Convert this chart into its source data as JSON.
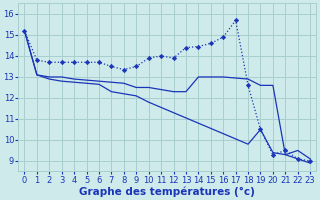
{
  "bg_color": "#ceeaea",
  "grid_color": "#a8cece",
  "line_color": "#1a35b8",
  "xlabel": "Graphe des températures (°c)",
  "xlabel_fontsize": 7.5,
  "tick_fontsize": 6.0,
  "ylim": [
    8.5,
    16.5
  ],
  "xlim": [
    -0.5,
    23.5
  ],
  "yticks": [
    9,
    10,
    11,
    12,
    13,
    14,
    15,
    16
  ],
  "xticks": [
    0,
    1,
    2,
    3,
    4,
    5,
    6,
    7,
    8,
    9,
    10,
    11,
    12,
    13,
    14,
    15,
    16,
    17,
    18,
    19,
    20,
    21,
    22,
    23
  ],
  "series1_x": [
    0,
    1,
    2,
    3,
    4,
    5,
    6,
    7,
    8,
    9,
    10,
    11,
    12,
    13,
    14,
    15,
    16,
    17,
    18,
    19,
    20,
    21,
    22,
    23
  ],
  "series1_y": [
    15.2,
    13.8,
    13.7,
    13.7,
    13.7,
    13.7,
    13.7,
    13.5,
    13.35,
    13.5,
    13.9,
    14.0,
    13.9,
    14.4,
    14.45,
    14.6,
    14.9,
    15.7,
    12.6,
    10.5,
    9.3,
    9.5,
    9.1,
    9.0
  ],
  "series2_x": [
    0,
    1,
    2,
    3,
    4,
    5,
    6,
    7,
    8,
    9,
    10,
    11,
    12,
    13,
    14,
    15,
    16,
    17,
    18,
    19,
    20,
    21,
    22,
    23
  ],
  "series2_y": [
    15.2,
    13.1,
    13.0,
    13.0,
    12.9,
    12.85,
    12.8,
    12.75,
    12.7,
    12.5,
    12.5,
    12.4,
    12.3,
    12.3,
    13.0,
    13.0,
    13.0,
    12.95,
    12.9,
    12.6,
    12.6,
    9.3,
    9.5,
    9.1
  ],
  "series3_x": [
    0,
    1,
    2,
    3,
    4,
    5,
    6,
    7,
    8,
    9,
    10,
    11,
    12,
    13,
    14,
    15,
    16,
    17,
    18,
    19,
    20,
    21,
    22,
    23
  ],
  "series3_y": [
    15.2,
    13.1,
    12.9,
    12.8,
    12.75,
    12.7,
    12.65,
    12.3,
    12.2,
    12.1,
    11.8,
    11.55,
    11.3,
    11.05,
    10.8,
    10.55,
    10.3,
    10.05,
    9.8,
    10.5,
    9.4,
    9.3,
    9.1,
    8.9
  ]
}
